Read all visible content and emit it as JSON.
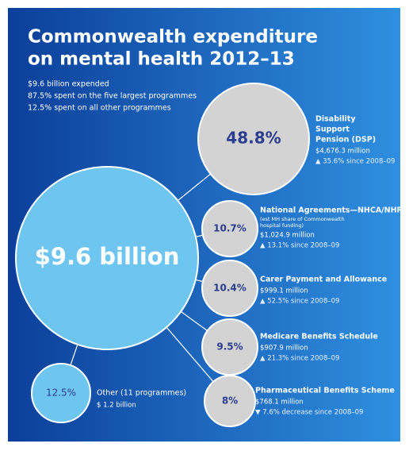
{
  "title_lines": [
    "Commonwealth expenditure",
    "on mental health 2012–13"
  ],
  "bullets": [
    "$9.6 billion expended",
    "87.5% spent on the five largest programmes",
    "12.5% spent on all other programmes"
  ],
  "center_label": "$9.6 billion",
  "programmes": [
    {
      "percent": "48.8%",
      "name_lines": [
        "Disability",
        "Support",
        "Pension (DSP)"
      ],
      "note_lines": [],
      "amount": "$4,676.3 million",
      "change": "▲ 35.6% since 2008–09"
    },
    {
      "percent": "10.7%",
      "name_lines": [
        "National Agreements—NHCA/NHRA"
      ],
      "note_lines": [
        "(est MH share of Commonwealth",
        "hospital funding)"
      ],
      "amount": "$1,024.9 million",
      "change": "▲ 13.1% since 2008–09"
    },
    {
      "percent": "10.4%",
      "name_lines": [
        "Carer Payment and Allowance"
      ],
      "note_lines": [],
      "amount": "$999.1 million",
      "change": "▲ 52.5% since 2008–09"
    },
    {
      "percent": "9.5%",
      "name_lines": [
        "Medicare Benefits Schedule"
      ],
      "note_lines": [],
      "amount": "$907.9 million",
      "change": "▲ 21.3% since 2008–09"
    },
    {
      "percent": "8%",
      "name_lines": [
        "Pharmaceutical Benefits Scheme"
      ],
      "note_lines": [],
      "amount": "$768.1 million",
      "change": "▼ 7.6% decrease since 2008–09"
    }
  ],
  "other": {
    "percent": "12.5%",
    "name": "Other (11 programmes)",
    "amount": "$ 1.2 billion"
  }
}
